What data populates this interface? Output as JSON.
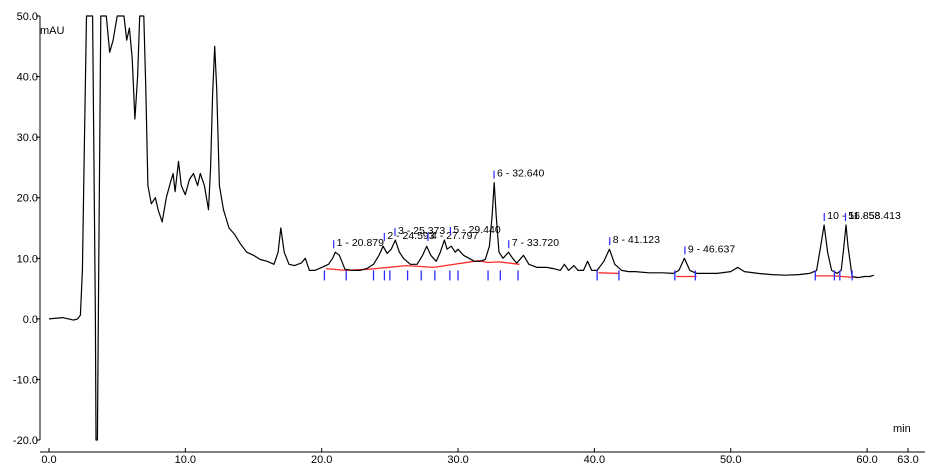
{
  "chart_data": {
    "type": "line",
    "title": "",
    "ylabel": "mAU",
    "xlabel": "min",
    "xlim": [
      0,
      63
    ],
    "ylim": [
      -20,
      50
    ],
    "x_ticks": [
      {
        "value": 0,
        "label": "0.0"
      },
      {
        "value": 10,
        "label": "10.0"
      },
      {
        "value": 20,
        "label": "20.0"
      },
      {
        "value": 30,
        "label": "30.0"
      },
      {
        "value": 40,
        "label": "40.0"
      },
      {
        "value": 50,
        "label": "50.0"
      },
      {
        "value": 60,
        "label": "60.0"
      },
      {
        "value": 63,
        "label": "63.0"
      }
    ],
    "y_ticks": [
      {
        "value": 50,
        "label": "50.0"
      },
      {
        "value": 40,
        "label": "40.0"
      },
      {
        "value": 30,
        "label": "30.0"
      },
      {
        "value": 20,
        "label": "20.0"
      },
      {
        "value": 10,
        "label": "10.0"
      },
      {
        "value": 0,
        "label": "0.0"
      },
      {
        "value": -10,
        "label": "-10.0"
      },
      {
        "value": -20,
        "label": "-20.0"
      }
    ],
    "series": [
      {
        "color": "#000000",
        "points": [
          [
            0.0,
            0.0
          ],
          [
            1.0,
            0.2
          ],
          [
            1.8,
            -0.2
          ],
          [
            2.1,
            0.0
          ],
          [
            2.3,
            0.6
          ],
          [
            2.45,
            8.0
          ],
          [
            2.6,
            30.0
          ],
          [
            2.75,
            50.0
          ],
          [
            3.2,
            50.0
          ],
          [
            3.4,
            0.0
          ],
          [
            3.45,
            -20.0
          ],
          [
            3.55,
            -20.0
          ],
          [
            3.65,
            10.0
          ],
          [
            3.8,
            50.0
          ],
          [
            4.2,
            50.0
          ],
          [
            4.45,
            44.0
          ],
          [
            4.7,
            46.0
          ],
          [
            5.0,
            50.0
          ],
          [
            5.5,
            50.0
          ],
          [
            5.7,
            46.0
          ],
          [
            5.9,
            48.0
          ],
          [
            6.1,
            43.0
          ],
          [
            6.3,
            33.0
          ],
          [
            6.5,
            40.0
          ],
          [
            6.65,
            50.0
          ],
          [
            6.95,
            50.0
          ],
          [
            7.1,
            38.0
          ],
          [
            7.25,
            22.0
          ],
          [
            7.5,
            19.0
          ],
          [
            7.8,
            20.0
          ],
          [
            8.0,
            18.0
          ],
          [
            8.3,
            16.0
          ],
          [
            8.6,
            20.0
          ],
          [
            8.9,
            22.5
          ],
          [
            9.1,
            24.0
          ],
          [
            9.25,
            21.0
          ],
          [
            9.5,
            26.0
          ],
          [
            9.7,
            22.0
          ],
          [
            10.0,
            20.5
          ],
          [
            10.3,
            23.0
          ],
          [
            10.6,
            24.0
          ],
          [
            10.9,
            22.0
          ],
          [
            11.1,
            24.0
          ],
          [
            11.4,
            22.0
          ],
          [
            11.7,
            18.0
          ],
          [
            11.85,
            25.0
          ],
          [
            12.0,
            37.0
          ],
          [
            12.15,
            45.0
          ],
          [
            12.3,
            38.0
          ],
          [
            12.5,
            22.0
          ],
          [
            12.8,
            18.0
          ],
          [
            13.2,
            15.0
          ],
          [
            13.6,
            14.0
          ],
          [
            14.0,
            12.5
          ],
          [
            14.5,
            11.0
          ],
          [
            15.0,
            10.5
          ],
          [
            15.5,
            9.8
          ],
          [
            16.0,
            9.5
          ],
          [
            16.5,
            9.0
          ],
          [
            16.8,
            11.0
          ],
          [
            17.0,
            15.0
          ],
          [
            17.25,
            11.0
          ],
          [
            17.6,
            9.0
          ],
          [
            18.0,
            8.8
          ],
          [
            18.5,
            9.2
          ],
          [
            18.8,
            10.0
          ],
          [
            19.1,
            8.0
          ],
          [
            19.5,
            8.0
          ],
          [
            20.0,
            8.5
          ],
          [
            20.5,
            9.0
          ],
          [
            20.8,
            10.0
          ],
          [
            21.0,
            11.0
          ],
          [
            21.3,
            10.5
          ],
          [
            21.7,
            8.2
          ],
          [
            22.2,
            8.0
          ],
          [
            22.8,
            8.0
          ],
          [
            23.3,
            8.3
          ],
          [
            23.8,
            9.0
          ],
          [
            24.2,
            10.5
          ],
          [
            24.5,
            12.0
          ],
          [
            24.8,
            10.8
          ],
          [
            25.1,
            11.5
          ],
          [
            25.4,
            13.0
          ],
          [
            25.7,
            11.0
          ],
          [
            26.0,
            10.0
          ],
          [
            26.5,
            9.0
          ],
          [
            27.0,
            9.0
          ],
          [
            27.4,
            10.5
          ],
          [
            27.7,
            12.0
          ],
          [
            28.0,
            10.5
          ],
          [
            28.4,
            9.5
          ],
          [
            28.7,
            11.0
          ],
          [
            29.0,
            13.0
          ],
          [
            29.2,
            11.5
          ],
          [
            29.5,
            12.0
          ],
          [
            29.8,
            11.0
          ],
          [
            30.0,
            11.5
          ],
          [
            30.4,
            10.5
          ],
          [
            30.8,
            10.0
          ],
          [
            31.2,
            9.5
          ],
          [
            31.6,
            9.5
          ],
          [
            32.0,
            9.8
          ],
          [
            32.3,
            12.0
          ],
          [
            32.5,
            17.0
          ],
          [
            32.65,
            22.5
          ],
          [
            32.8,
            17.0
          ],
          [
            33.0,
            11.0
          ],
          [
            33.3,
            10.0
          ],
          [
            33.7,
            11.0
          ],
          [
            34.0,
            10.0
          ],
          [
            34.3,
            9.2
          ],
          [
            34.8,
            10.5
          ],
          [
            35.2,
            9.0
          ],
          [
            35.8,
            8.5
          ],
          [
            36.5,
            8.5
          ],
          [
            37.0,
            8.3
          ],
          [
            37.5,
            8.0
          ],
          [
            37.8,
            9.0
          ],
          [
            38.1,
            8.0
          ],
          [
            38.5,
            8.8
          ],
          [
            38.8,
            8.0
          ],
          [
            39.2,
            8.0
          ],
          [
            39.5,
            9.5
          ],
          [
            39.8,
            8.0
          ],
          [
            40.2,
            8.0
          ],
          [
            40.7,
            9.5
          ],
          [
            41.1,
            11.5
          ],
          [
            41.5,
            9.0
          ],
          [
            42.0,
            8.0
          ],
          [
            42.5,
            7.8
          ],
          [
            43.0,
            7.8
          ],
          [
            44.0,
            7.6
          ],
          [
            45.0,
            7.6
          ],
          [
            45.8,
            7.5
          ],
          [
            46.2,
            8.0
          ],
          [
            46.6,
            10.0
          ],
          [
            47.0,
            8.0
          ],
          [
            47.5,
            7.5
          ],
          [
            48.0,
            7.5
          ],
          [
            49.0,
            7.5
          ],
          [
            50.0,
            7.8
          ],
          [
            50.5,
            8.5
          ],
          [
            51.0,
            7.8
          ],
          [
            52.0,
            7.5
          ],
          [
            53.0,
            7.3
          ],
          [
            54.0,
            7.2
          ],
          [
            55.0,
            7.3
          ],
          [
            55.8,
            7.5
          ],
          [
            56.3,
            8.0
          ],
          [
            56.6,
            12.0
          ],
          [
            56.85,
            15.5
          ],
          [
            57.1,
            11.0
          ],
          [
            57.4,
            8.0
          ],
          [
            57.8,
            7.5
          ],
          [
            58.1,
            8.0
          ],
          [
            58.3,
            12.0
          ],
          [
            58.45,
            15.5
          ],
          [
            58.6,
            12.0
          ],
          [
            58.9,
            7.0
          ],
          [
            59.3,
            6.8
          ],
          [
            59.8,
            7.0
          ],
          [
            60.2,
            7.0
          ],
          [
            60.5,
            7.2
          ]
        ]
      }
    ],
    "peaks": [
      {
        "label": "1 - 20.879",
        "x": 20.879,
        "y": 11.0
      },
      {
        "label": "2 - 24.593",
        "x": 24.593,
        "y": 12.2
      },
      {
        "label": "3 - 25.373",
        "x": 25.373,
        "y": 13.0
      },
      {
        "label": "4 - 27.797",
        "x": 27.797,
        "y": 12.2
      },
      {
        "label": "5 - 29.440",
        "x": 29.44,
        "y": 13.2
      },
      {
        "label": "6 - 32.640",
        "x": 32.64,
        "y": 22.5
      },
      {
        "label": "7 - 33.720",
        "x": 33.72,
        "y": 11.0
      },
      {
        "label": "8 - 41.123",
        "x": 41.123,
        "y": 11.5
      },
      {
        "label": "9 - 46.637",
        "x": 46.637,
        "y": 10.0
      },
      {
        "label": "10 - 56.858",
        "x": 56.858,
        "y": 15.5
      },
      {
        "label": "11 - 58.413",
        "x": 58.413,
        "y": 15.5
      }
    ],
    "baselines": [
      [
        [
          20.3,
          8.3
        ],
        [
          21.8,
          8.0
        ],
        [
          23.5,
          8.2
        ],
        [
          26.2,
          8.8
        ],
        [
          28.2,
          8.5
        ],
        [
          31.5,
          9.6
        ],
        [
          32.2,
          9.3
        ],
        [
          33.0,
          9.4
        ],
        [
          34.5,
          9.0
        ]
      ],
      [
        [
          40.3,
          7.6
        ],
        [
          41.8,
          7.5
        ]
      ],
      [
        [
          46.0,
          7.0
        ],
        [
          47.5,
          7.0
        ]
      ],
      [
        [
          56.2,
          7.1
        ],
        [
          57.6,
          7.1
        ],
        [
          58.7,
          6.9
        ],
        [
          59.3,
          6.9
        ]
      ]
    ],
    "markers": [
      20.2,
      21.8,
      23.8,
      24.6,
      25.0,
      26.3,
      27.3,
      28.3,
      29.4,
      30.0,
      32.2,
      33.1,
      34.4,
      40.2,
      41.8,
      45.9,
      47.4,
      56.2,
      57.6,
      58.0,
      58.9
    ],
    "header_text": ""
  }
}
